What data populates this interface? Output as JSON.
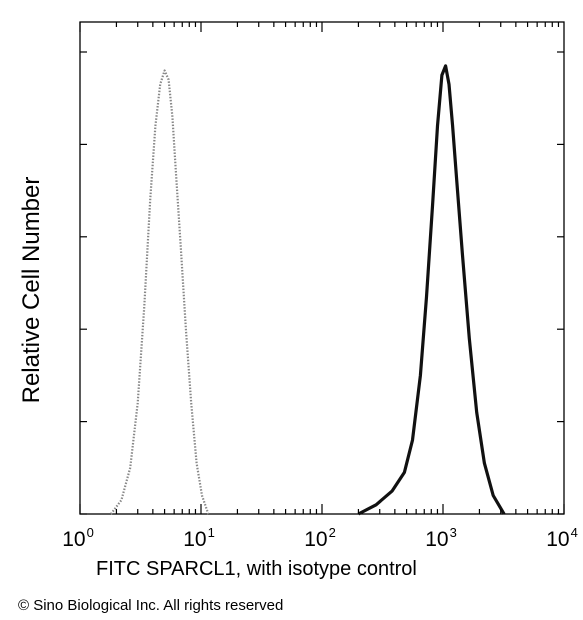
{
  "chart_data": {
    "type": "line",
    "title": "",
    "xlabel": "FITC  SPARCL1,  with isotype control",
    "ylabel": "Relative Cell Number",
    "x_scale": "log",
    "xlim": [
      1,
      10000
    ],
    "ylim": [
      0,
      100
    ],
    "x_ticks": [
      {
        "base": "10",
        "exp": "0"
      },
      {
        "base": "10",
        "exp": "1"
      },
      {
        "base": "10",
        "exp": "2"
      },
      {
        "base": "10",
        "exp": "3"
      },
      {
        "base": "10",
        "exp": "4"
      }
    ],
    "grid": false,
    "legend": "none",
    "series": [
      {
        "style": "dotted-gray",
        "color": "#888888",
        "x": [
          1.8,
          2.2,
          2.6,
          3.0,
          3.4,
          3.8,
          4.2,
          4.6,
          5.0,
          5.4,
          5.8,
          6.2,
          6.8,
          7.5,
          8.3,
          9.2,
          10.2,
          11.5
        ],
        "y": [
          0,
          3,
          10,
          24,
          45,
          68,
          84,
          93,
          96,
          94,
          86,
          74,
          58,
          40,
          24,
          11,
          4,
          0
        ]
      },
      {
        "style": "solid-black",
        "color": "#111111",
        "x": [
          200,
          280,
          380,
          480,
          560,
          650,
          730,
          820,
          900,
          980,
          1050,
          1120,
          1200,
          1300,
          1450,
          1650,
          1900,
          2200,
          2600,
          3200
        ],
        "y": [
          0,
          2,
          5,
          9,
          16,
          30,
          47,
          67,
          84,
          95,
          97,
          93,
          84,
          72,
          56,
          38,
          22,
          11,
          4,
          0
        ]
      }
    ]
  },
  "copyright": "© Sino Biological Inc. All rights reserved"
}
